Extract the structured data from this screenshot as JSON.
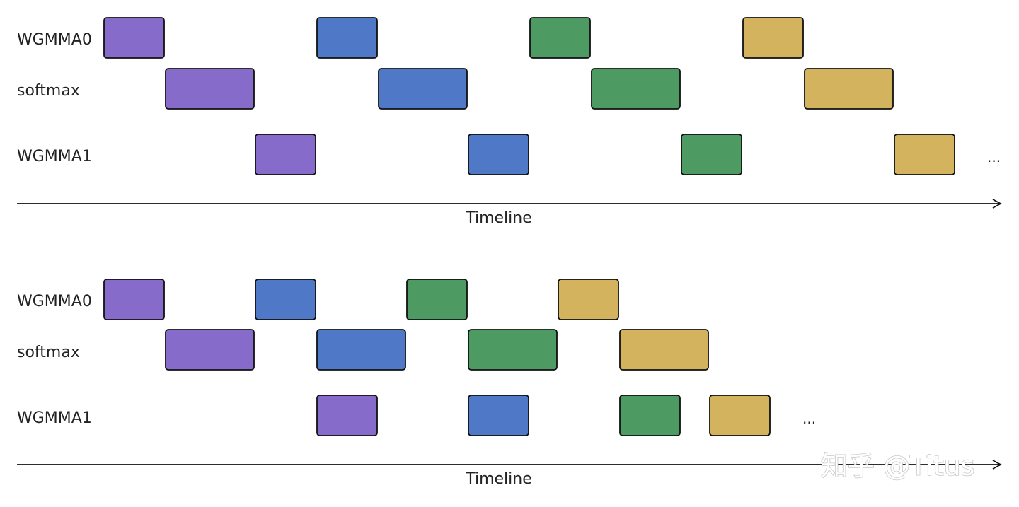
{
  "colors": {
    "purple": "#866bcb",
    "blue": "#4f79c7",
    "green": "#4e9a63",
    "gold": "#d4b35e",
    "outline": "#111111",
    "axis": "#111111"
  },
  "diagrams": [
    {
      "id": "top",
      "rows": [
        {
          "label": "WGMMA0",
          "blocks": [
            "purple",
            "blue",
            "green",
            "gold"
          ]
        },
        {
          "label": "softmax",
          "blocks": [
            "purple",
            "blue",
            "green",
            "gold"
          ]
        },
        {
          "label": "WGMMA1",
          "blocks": [
            "purple",
            "blue",
            "green",
            "gold"
          ]
        }
      ],
      "continuation": "...",
      "axis_label": "Timeline"
    },
    {
      "id": "bottom",
      "rows": [
        {
          "label": "WGMMA0",
          "blocks": [
            "purple",
            "blue",
            "green",
            "gold"
          ]
        },
        {
          "label": "softmax",
          "blocks": [
            "purple",
            "blue",
            "green",
            "gold"
          ]
        },
        {
          "label": "WGMMA1",
          "blocks": [
            "purple",
            "blue",
            "green",
            "gold"
          ]
        }
      ],
      "continuation": "...",
      "axis_label": "Timeline"
    }
  ],
  "watermark": "知乎 @Titus"
}
